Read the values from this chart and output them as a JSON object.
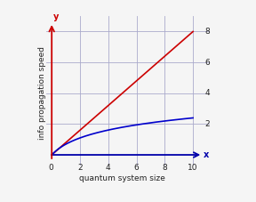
{
  "xlim": [
    0,
    10
  ],
  "ylim": [
    0,
    8
  ],
  "xlabel": "quantum system size",
  "ylabel": "info propagation speed",
  "background_color": "#f5f5f5",
  "grid_color": "#aaaacc",
  "red_line_color": "#cc0000",
  "blue_line_color": "#0000cc",
  "tick_label_color": "#222222",
  "power_law_slope": 0.8,
  "log_scale": 1.0,
  "figsize": [
    2.88,
    2.27
  ],
  "dpi": 100,
  "ytick_labels": [
    2,
    4,
    6,
    8
  ],
  "xtick_labels": [
    0,
    2,
    4,
    6,
    8,
    10
  ]
}
